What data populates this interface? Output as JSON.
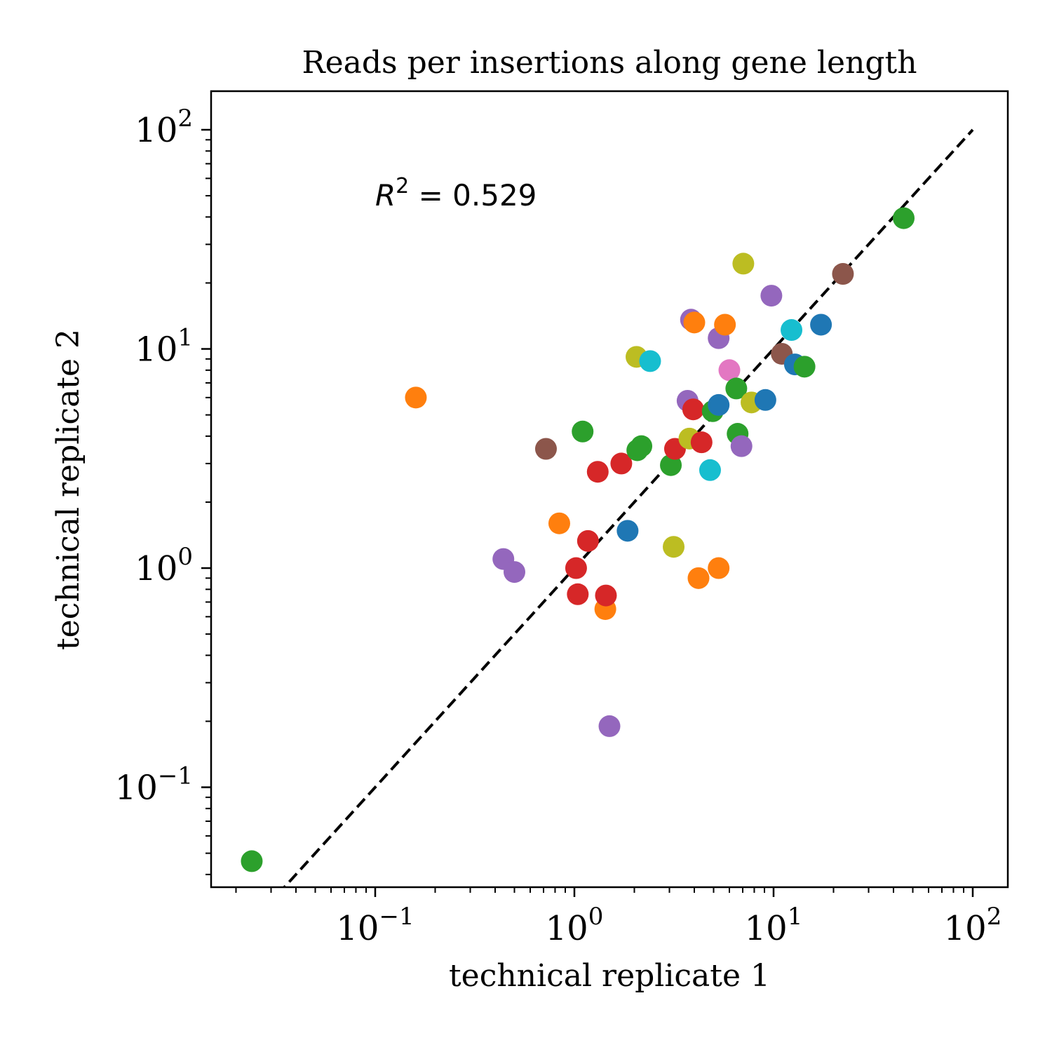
{
  "chart_data": {
    "type": "scatter",
    "title": "Reads per insertions along gene length",
    "xlabel": "technical replicate 1",
    "ylabel": "technical replicate 2",
    "xscale": "log",
    "yscale": "log",
    "xlim": [
      0.015,
      150
    ],
    "ylim": [
      0.035,
      150
    ],
    "grid": false,
    "annotation": {
      "base": "R",
      "exp": "2",
      "rest": " = 0.529",
      "x": 0.1,
      "y": 50
    },
    "reference_line": {
      "style": "dashed",
      "color": "#000000",
      "from": [
        0.01,
        0.01
      ],
      "to": [
        100,
        100
      ]
    },
    "x_ticks": [
      {
        "value": 0.1,
        "base": "10",
        "exp": "−1"
      },
      {
        "value": 1,
        "base": "10",
        "exp": "0"
      },
      {
        "value": 10,
        "base": "10",
        "exp": "1"
      },
      {
        "value": 100,
        "base": "10",
        "exp": "2"
      }
    ],
    "y_ticks": [
      {
        "value": 0.1,
        "base": "10",
        "exp": "−1"
      },
      {
        "value": 1,
        "base": "10",
        "exp": "0"
      },
      {
        "value": 10,
        "base": "10",
        "exp": "1"
      },
      {
        "value": 100,
        "base": "10",
        "exp": "2"
      }
    ],
    "points": [
      {
        "x": 0.024,
        "y": 0.046,
        "color": "#2ca02c"
      },
      {
        "x": 0.16,
        "y": 6.0,
        "color": "#ff7f0e"
      },
      {
        "x": 0.44,
        "y": 1.1,
        "color": "#9467bd"
      },
      {
        "x": 0.5,
        "y": 0.96,
        "color": "#9467bd"
      },
      {
        "x": 0.72,
        "y": 3.5,
        "color": "#8c564b"
      },
      {
        "x": 0.84,
        "y": 1.6,
        "color": "#ff7f0e"
      },
      {
        "x": 1.02,
        "y": 1.0,
        "color": "#d62728"
      },
      {
        "x": 1.04,
        "y": 0.76,
        "color": "#d62728"
      },
      {
        "x": 1.1,
        "y": 4.2,
        "color": "#2ca02c"
      },
      {
        "x": 1.17,
        "y": 1.33,
        "color": "#d62728"
      },
      {
        "x": 1.31,
        "y": 2.75,
        "color": "#d62728"
      },
      {
        "x": 1.43,
        "y": 0.65,
        "color": "#ff7f0e"
      },
      {
        "x": 1.44,
        "y": 0.75,
        "color": "#d62728"
      },
      {
        "x": 1.5,
        "y": 0.19,
        "color": "#9467bd"
      },
      {
        "x": 1.72,
        "y": 3.0,
        "color": "#d62728"
      },
      {
        "x": 1.85,
        "y": 1.48,
        "color": "#1f77b4"
      },
      {
        "x": 2.05,
        "y": 9.2,
        "color": "#bcbd22"
      },
      {
        "x": 2.07,
        "y": 3.45,
        "color": "#2ca02c"
      },
      {
        "x": 2.17,
        "y": 3.6,
        "color": "#2ca02c"
      },
      {
        "x": 2.4,
        "y": 8.8,
        "color": "#17becf"
      },
      {
        "x": 3.05,
        "y": 2.95,
        "color": "#2ca02c"
      },
      {
        "x": 3.15,
        "y": 1.25,
        "color": "#bcbd22"
      },
      {
        "x": 3.2,
        "y": 3.5,
        "color": "#d62728"
      },
      {
        "x": 3.7,
        "y": 5.8,
        "color": "#9467bd"
      },
      {
        "x": 3.78,
        "y": 3.9,
        "color": "#bcbd22"
      },
      {
        "x": 3.85,
        "y": 13.6,
        "color": "#9467bd"
      },
      {
        "x": 3.95,
        "y": 5.3,
        "color": "#d62728"
      },
      {
        "x": 4.0,
        "y": 13.2,
        "color": "#ff7f0e"
      },
      {
        "x": 4.2,
        "y": 0.9,
        "color": "#ff7f0e"
      },
      {
        "x": 4.35,
        "y": 3.75,
        "color": "#d62728"
      },
      {
        "x": 4.8,
        "y": 2.8,
        "color": "#17becf"
      },
      {
        "x": 4.95,
        "y": 5.2,
        "color": "#2ca02c"
      },
      {
        "x": 5.3,
        "y": 5.55,
        "color": "#1f77b4"
      },
      {
        "x": 5.3,
        "y": 1.0,
        "color": "#ff7f0e"
      },
      {
        "x": 5.3,
        "y": 11.2,
        "color": "#9467bd"
      },
      {
        "x": 5.7,
        "y": 12.9,
        "color": "#ff7f0e"
      },
      {
        "x": 6.0,
        "y": 8.0,
        "color": "#e377c2"
      },
      {
        "x": 6.5,
        "y": 6.6,
        "color": "#2ca02c"
      },
      {
        "x": 6.6,
        "y": 4.1,
        "color": "#2ca02c"
      },
      {
        "x": 6.9,
        "y": 3.6,
        "color": "#9467bd"
      },
      {
        "x": 7.05,
        "y": 24.5,
        "color": "#bcbd22"
      },
      {
        "x": 7.75,
        "y": 5.7,
        "color": "#bcbd22"
      },
      {
        "x": 9.1,
        "y": 5.85,
        "color": "#1f77b4"
      },
      {
        "x": 9.75,
        "y": 17.5,
        "color": "#9467bd"
      },
      {
        "x": 11.0,
        "y": 9.5,
        "color": "#8c564b"
      },
      {
        "x": 12.3,
        "y": 12.2,
        "color": "#17becf"
      },
      {
        "x": 12.8,
        "y": 8.5,
        "color": "#1f77b4"
      },
      {
        "x": 14.3,
        "y": 8.3,
        "color": "#2ca02c"
      },
      {
        "x": 17.3,
        "y": 12.9,
        "color": "#1f77b4"
      },
      {
        "x": 22.3,
        "y": 22.0,
        "color": "#8c564b"
      },
      {
        "x": 45.0,
        "y": 39.5,
        "color": "#2ca02c"
      }
    ]
  }
}
